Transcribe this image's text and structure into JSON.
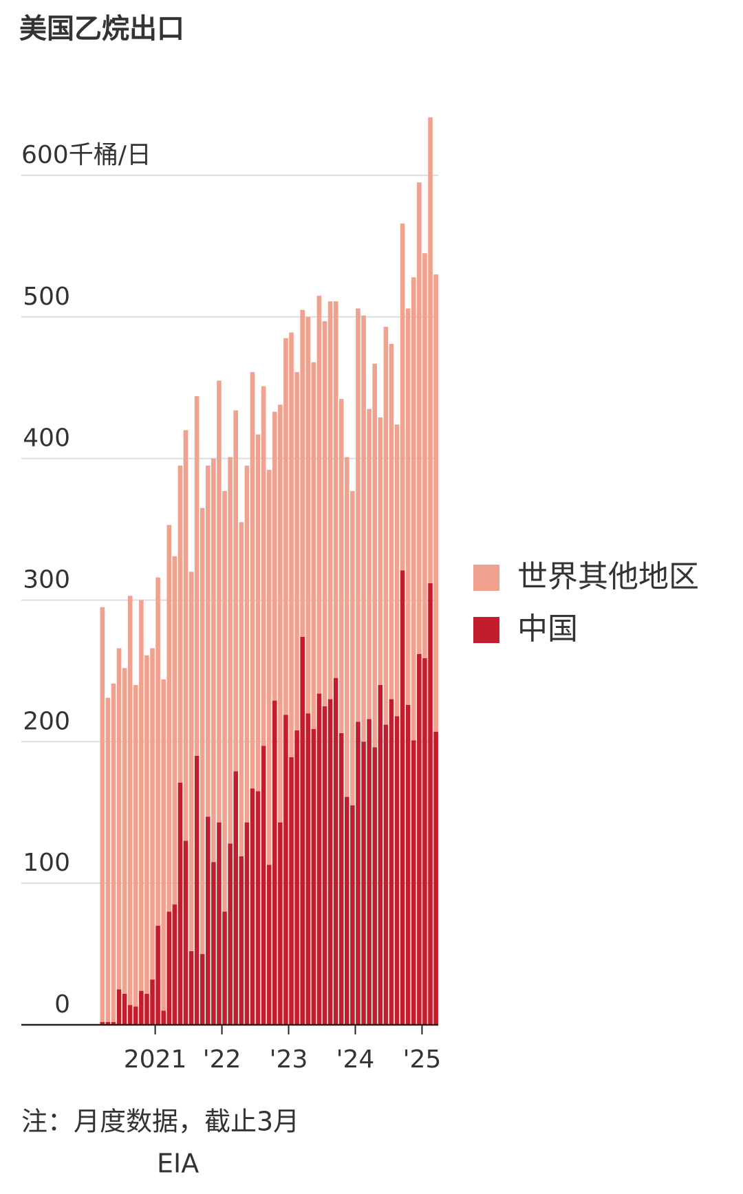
{
  "chart_data": {
    "type": "stacked-bar",
    "title": "美国乙烷出口",
    "categories": [
      null,
      null,
      null,
      null,
      null,
      null,
      null,
      null,
      null,
      null,
      null,
      null,
      null,
      null,
      null,
      null,
      null,
      null,
      null,
      null,
      null,
      null,
      null,
      null,
      null,
      null,
      null,
      null,
      null,
      null,
      null,
      null,
      null,
      null,
      null,
      null,
      null,
      null,
      null,
      null,
      null,
      null,
      null,
      null,
      null,
      null,
      null,
      null,
      null,
      null,
      null,
      null,
      null,
      null,
      null,
      null,
      null,
      null,
      null,
      null,
      null
    ],
    "series": [
      {
        "name": "中国",
        "color": "#c21d2c",
        "values": [
          2,
          2,
          2,
          25,
          22,
          14,
          13,
          24,
          22,
          32,
          70,
          10,
          80,
          85,
          171,
          130,
          52,
          190,
          50,
          147,
          115,
          143,
          80,
          128,
          179,
          119,
          143,
          167,
          165,
          197,
          113,
          229,
          143,
          219,
          189,
          208,
          274,
          220,
          209,
          234,
          225,
          230,
          245,
          206,
          161,
          155,
          214,
          200,
          216,
          196,
          240,
          212,
          230,
          218,
          321,
          226,
          201,
          262,
          259,
          312,
          207
        ]
      },
      {
        "name": "世界其他地区",
        "color": "#f0a28f",
        "values": [
          293,
          229,
          239,
          241,
          230,
          289,
          227,
          276,
          239,
          234,
          246,
          234,
          273,
          246,
          224,
          290,
          268,
          254,
          315,
          248,
          285,
          312,
          297,
          273,
          255,
          236,
          252,
          294,
          252,
          254,
          279,
          204,
          295,
          266,
          300,
          253,
          231,
          280,
          259,
          281,
          272,
          281,
          266,
          236,
          240,
          222,
          292,
          301,
          219,
          271,
          189,
          281,
          251,
          206,
          245,
          280,
          327,
          333,
          286,
          329,
          323
        ]
      }
    ],
    "ylim": [
      0,
      650
    ],
    "yticks": [
      0,
      100,
      200,
      300,
      400,
      500,
      {
        "value": 600,
        "label": "600千桶/日"
      }
    ],
    "xticks": [
      {
        "value": 10,
        "label": "2021"
      },
      {
        "value": 22,
        "label": "'22"
      },
      {
        "value": 34,
        "label": "'23"
      },
      {
        "value": 46,
        "label": "'24"
      },
      {
        "value": 58,
        "label": "'25"
      }
    ],
    "grid": true,
    "legend": "right",
    "note": "注：月度数据，截止3月",
    "source": "EIA"
  }
}
